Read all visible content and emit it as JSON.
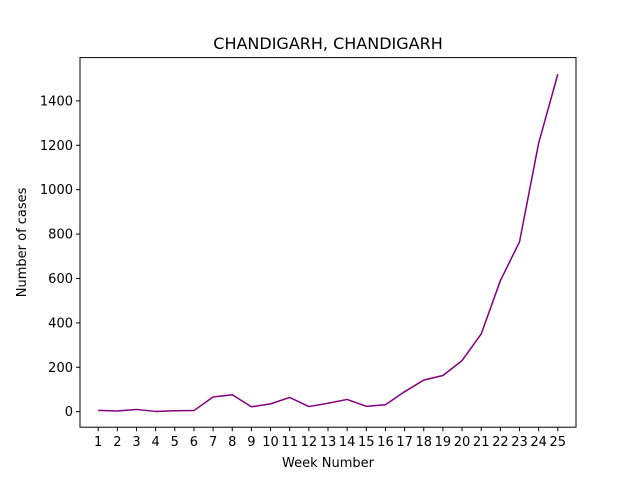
{
  "chart_data": {
    "type": "line",
    "title": "CHANDIGARH, CHANDIGARH",
    "xlabel": "Week Number",
    "ylabel": "Number of cases",
    "x": [
      1,
      2,
      3,
      4,
      5,
      6,
      7,
      8,
      9,
      10,
      11,
      12,
      13,
      14,
      15,
      16,
      17,
      18,
      19,
      20,
      21,
      22,
      23,
      24,
      25
    ],
    "series": [
      {
        "color": "#800080",
        "values": [
          6,
          3,
          10,
          1,
          4,
          5,
          66,
          76,
          22,
          35,
          64,
          23,
          38,
          55,
          24,
          31,
          90,
          142,
          163,
          230,
          350,
          590,
          765,
          1210,
          1520
        ]
      }
    ],
    "xlim": [
      0.05,
      25.95
    ],
    "ylim": [
      -70,
      1595
    ],
    "yticks": [
      0,
      200,
      400,
      600,
      800,
      1000,
      1200,
      1400
    ],
    "grid": false
  }
}
